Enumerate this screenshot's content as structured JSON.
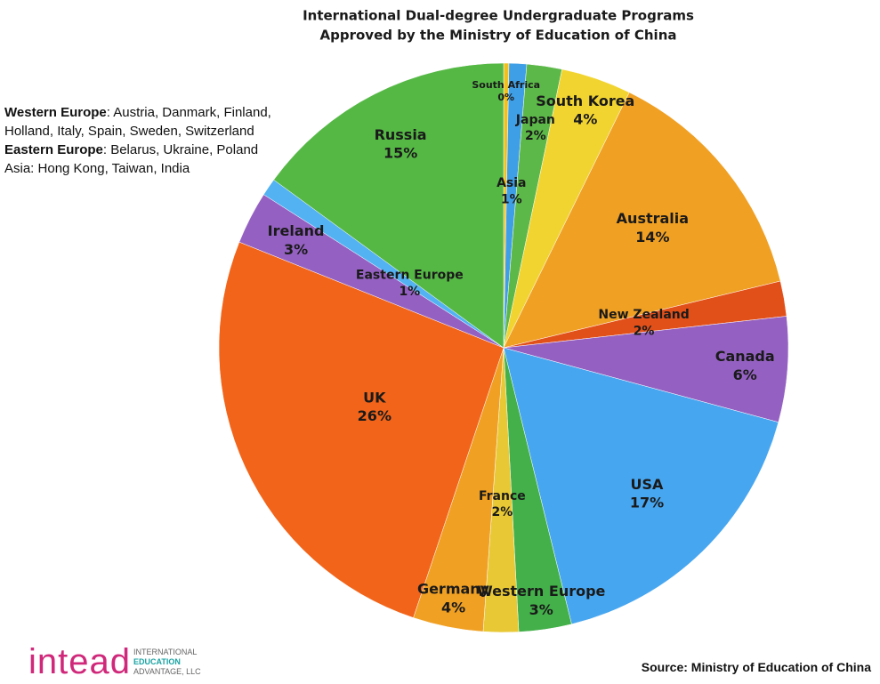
{
  "chart_data": {
    "type": "pie",
    "title": [
      "International Dual-degree Undergraduate Programs",
      "Approved by the Ministry of Education of China"
    ],
    "categories": [
      "South Africa",
      "Asia",
      "Japan",
      "South Korea",
      "Australia",
      "New Zealand",
      "Canada",
      "USA",
      "Western Europe",
      "France",
      "Germany",
      "UK",
      "Ireland",
      "Eastern Europe",
      "Russia"
    ],
    "values": [
      0.3,
      1,
      2,
      4,
      14,
      2,
      6,
      17,
      3,
      2,
      4,
      26,
      3,
      1,
      15
    ],
    "value_labels": [
      "0%",
      "1%",
      "2%",
      "4%",
      "14%",
      "2%",
      "6%",
      "17%",
      "3%",
      "2%",
      "4%",
      "26%",
      "3%",
      "1%",
      "15%"
    ],
    "colors": [
      "#f0c020",
      "#3f9fe6",
      "#5cb848",
      "#f2d431",
      "#f0a023",
      "#e2501a",
      "#9461c2",
      "#47a6f0",
      "#43b04a",
      "#e8c834",
      "#f0a023",
      "#f2641a",
      "#9461c2",
      "#52b2f2",
      "#55b845"
    ],
    "notes": [
      {
        "bold": "Western Europe",
        "text": ": Austria, Danmark, Finland, Holland, Italy, Spain, Sweden, Switzerland"
      },
      {
        "bold": "Eastern Europe",
        "text": ": Belarus, Ukraine, Poland"
      },
      {
        "text": "Asia: Hong Kong, Taiwan, India"
      }
    ],
    "source": "Source: Ministry of Education of China"
  },
  "logo": {
    "mark": "intead",
    "line1": "INTERNATIONAL",
    "line2": "EDUCATION",
    "line3": "ADVANTAGE, LLC"
  }
}
